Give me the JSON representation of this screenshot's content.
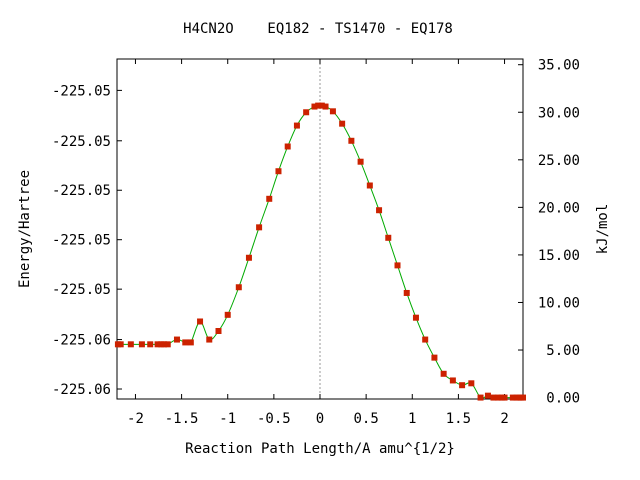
{
  "chart_data": {
    "type": "line",
    "title": "H4CN2O    EQ182 - TS1470 - EQ178",
    "xlabel": "Reaction Path Length/A amu^{1/2}",
    "ylabel_left": "Energy/Hartree",
    "ylabel_right": "kJ/mol",
    "xlim": [
      -2.2,
      2.2
    ],
    "ylim_kj": [
      -0.15,
      35.6
    ],
    "x_ticks": [
      {
        "value": -2,
        "label": "-2"
      },
      {
        "value": -1.5,
        "label": "-1.5"
      },
      {
        "value": -1,
        "label": "-1"
      },
      {
        "value": -0.5,
        "label": "-0.5"
      },
      {
        "value": 0,
        "label": "0"
      },
      {
        "value": 0.5,
        "label": "0.5"
      },
      {
        "value": 1,
        "label": "1"
      },
      {
        "value": 1.5,
        "label": "1.5"
      },
      {
        "value": 2,
        "label": "2"
      }
    ],
    "left_ticks": [
      {
        "kj": 32.3,
        "label": "-225.05"
      },
      {
        "kj": 27.0,
        "label": "-225.05"
      },
      {
        "kj": 21.8,
        "label": "-225.05"
      },
      {
        "kj": 16.6,
        "label": "-225.05"
      },
      {
        "kj": 11.4,
        "label": "-225.05"
      },
      {
        "kj": 6.1,
        "label": "-225.06"
      },
      {
        "kj": 0.9,
        "label": "-225.06"
      }
    ],
    "right_ticks": [
      {
        "kj": 0,
        "label": "0.00"
      },
      {
        "kj": 5,
        "label": "5.00"
      },
      {
        "kj": 10,
        "label": "10.00"
      },
      {
        "kj": 15,
        "label": "15.00"
      },
      {
        "kj": 20,
        "label": "20.00"
      },
      {
        "kj": 25,
        "label": "25.00"
      },
      {
        "kj": 30,
        "label": "30.00"
      },
      {
        "kj": 35,
        "label": "35.00"
      }
    ],
    "ts_marker_x": 0,
    "grid": false,
    "series": [
      {
        "color": "#00aa00",
        "marker_color": "#cc2200",
        "x": [
          -2.19,
          -2.16,
          -2.05,
          -1.93,
          -1.84,
          -1.76,
          -1.72,
          -1.69,
          -1.65,
          -1.55,
          -1.46,
          -1.4,
          -1.3,
          -1.2,
          -1.1,
          -1.0,
          -0.88,
          -0.77,
          -0.66,
          -0.55,
          -0.45,
          -0.35,
          -0.25,
          -0.15,
          -0.06,
          -0.02,
          0.02,
          0.06,
          0.14,
          0.24,
          0.34,
          0.44,
          0.54,
          0.64,
          0.74,
          0.84,
          0.94,
          1.04,
          1.14,
          1.24,
          1.34,
          1.44,
          1.54,
          1.64,
          1.74,
          1.82,
          1.88,
          1.93,
          1.97,
          2.0,
          2.09,
          2.13,
          2.16,
          2.18,
          2.2
        ],
        "y_kj": [
          5.6,
          5.6,
          5.6,
          5.6,
          5.6,
          5.6,
          5.6,
          5.6,
          5.6,
          6.1,
          5.8,
          5.8,
          8.0,
          6.1,
          7.0,
          8.7,
          11.6,
          14.7,
          17.9,
          20.9,
          23.8,
          26.4,
          28.6,
          30.0,
          30.6,
          30.7,
          30.7,
          30.6,
          30.1,
          28.8,
          27.0,
          24.8,
          22.3,
          19.7,
          16.8,
          13.9,
          11.0,
          8.4,
          6.1,
          4.2,
          2.5,
          1.8,
          1.3,
          1.5,
          0.0,
          0.2,
          0.0,
          0.0,
          0.0,
          0.0,
          0.0,
          0.0,
          0.0,
          0.0,
          0.0
        ]
      }
    ]
  }
}
